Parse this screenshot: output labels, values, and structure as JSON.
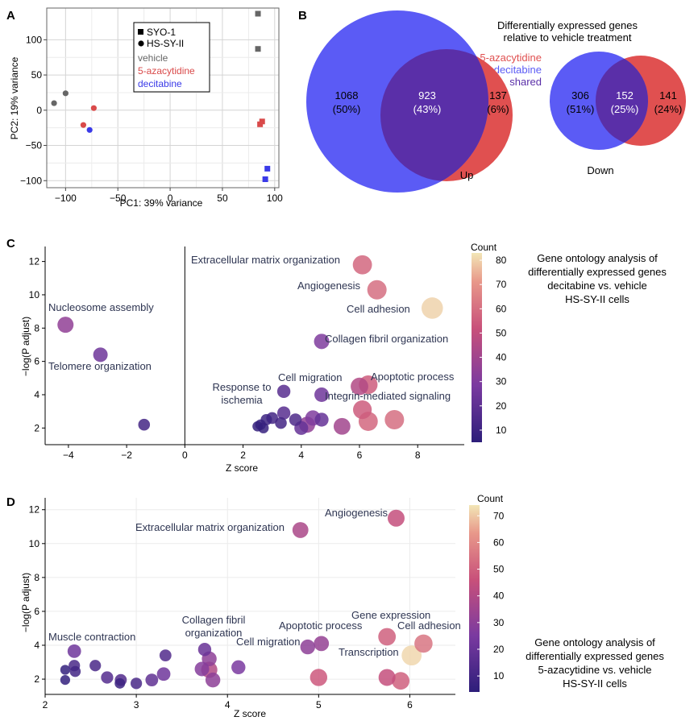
{
  "chart_data": [
    {
      "id": "A",
      "type": "scatter",
      "panel_letter": "A",
      "xlabel": "PC1: 39% variance",
      "ylabel": "PC2: 19% variance",
      "xlim": [
        -118,
        104
      ],
      "ylim": [
        -110,
        145
      ],
      "xticks": [
        -100,
        -50,
        0,
        50,
        100
      ],
      "yticks": [
        -100,
        -50,
        0,
        50,
        100
      ],
      "xticklabels": [
        "−100",
        "−50",
        "0",
        "50",
        "100"
      ],
      "yticklabels": [
        "−100",
        "−50",
        "0",
        "50",
        "100"
      ],
      "legend": {
        "shapes": [
          {
            "shape": "square",
            "label": "SYO-1"
          },
          {
            "shape": "circle",
            "label": "HS-SY-II"
          }
        ],
        "colors": [
          {
            "label": "vehicle",
            "color": "#666666"
          },
          {
            "label": "5-azacytidine",
            "color": "#d94a4a"
          },
          {
            "label": "decitabine",
            "color": "#3a3ae8"
          }
        ]
      },
      "points": [
        {
          "x": 84,
          "y": 137,
          "shape": "square",
          "group": "vehicle"
        },
        {
          "x": 84,
          "y": 87,
          "shape": "square",
          "group": "vehicle"
        },
        {
          "x": -111,
          "y": 10,
          "shape": "circle",
          "group": "vehicle"
        },
        {
          "x": -100,
          "y": 24,
          "shape": "circle",
          "group": "vehicle"
        },
        {
          "x": -73,
          "y": 3,
          "shape": "circle",
          "group": "5-azacytidine"
        },
        {
          "x": -83,
          "y": -21,
          "shape": "circle",
          "group": "5-azacytidine"
        },
        {
          "x": 86,
          "y": -20,
          "shape": "square",
          "group": "5-azacytidine"
        },
        {
          "x": 88,
          "y": -16,
          "shape": "square",
          "group": "5-azacytidine"
        },
        {
          "x": -77,
          "y": -28,
          "shape": "circle",
          "group": "decitabine"
        },
        {
          "x": 93,
          "y": -83,
          "shape": "square",
          "group": "decitabine"
        },
        {
          "x": 91,
          "y": -98,
          "shape": "square",
          "group": "decitabine"
        }
      ]
    },
    {
      "id": "B",
      "type": "venn",
      "panel_letter": "B",
      "title_line1": "Differentially expressed genes",
      "title_line2": "relative to vehicle treatment",
      "legend": [
        {
          "label": "5-azacytidine",
          "color": "#e05050"
        },
        {
          "label": "decitabine",
          "color": "#5b5bf5"
        },
        {
          "label": "shared",
          "color": "#5a2fa8"
        }
      ],
      "up": {
        "label": "Up",
        "decitabine_only": {
          "count": "1068",
          "pct": "(50%)"
        },
        "shared": {
          "count": "923",
          "pct": "(43%)"
        },
        "azacytidine_only": {
          "count": "137",
          "pct": "(6%)"
        }
      },
      "down": {
        "label": "Down",
        "decitabine_only": {
          "count": "306",
          "pct": "(51%)"
        },
        "shared": {
          "count": "152",
          "pct": "(25%)"
        },
        "azacytidine_only": {
          "count": "141",
          "pct": "(24%)"
        }
      }
    },
    {
      "id": "C",
      "type": "scatter",
      "panel_letter": "C",
      "xlabel": "Z score",
      "ylabel": "−log(P adjust)",
      "xlim": [
        -4.8,
        9.6
      ],
      "ylim": [
        1.0,
        12.9
      ],
      "xticks": [
        -4,
        -2,
        0,
        2,
        4,
        6,
        8
      ],
      "yticks": [
        2,
        4,
        6,
        8,
        10,
        12
      ],
      "xticklabels": [
        "−4",
        "−2",
        "0",
        "2",
        "4",
        "6",
        "8"
      ],
      "yticklabels": [
        "2",
        "4",
        "6",
        "8",
        "10",
        "12"
      ],
      "colorbar": {
        "title": "Count",
        "min": 5,
        "max": 83,
        "ticks": [
          10,
          20,
          30,
          40,
          50,
          60,
          70,
          80
        ]
      },
      "side_text": [
        "Gene ontology analysis of",
        "differentially expressed genes",
        "decitabine vs. vehicle",
        "HS-SY-II cells"
      ],
      "annotations": [
        {
          "text": "Extracellular matrix organization"
        },
        {
          "text": "Angiogenesis"
        },
        {
          "text": "Cell adhesion"
        },
        {
          "text": "Nucleosome assembly"
        },
        {
          "text": "Collagen fibril organization"
        },
        {
          "text": "Telomere organization"
        },
        {
          "text": "Cell migration"
        },
        {
          "text": "Apoptotic process"
        },
        {
          "text": "Response to"
        },
        {
          "text": "ischemia"
        },
        {
          "text": "Integrin-mediated signaling"
        }
      ],
      "points": [
        {
          "x": 6.1,
          "y": 11.8,
          "count": 58
        },
        {
          "x": 6.6,
          "y": 10.3,
          "count": 60
        },
        {
          "x": 8.5,
          "y": 9.2,
          "count": 80
        },
        {
          "x": -4.1,
          "y": 8.2,
          "count": 35
        },
        {
          "x": 4.7,
          "y": 7.2,
          "count": 30
        },
        {
          "x": -2.9,
          "y": 6.4,
          "count": 25
        },
        {
          "x": 3.4,
          "y": 4.2,
          "count": 18
        },
        {
          "x": 6.0,
          "y": 4.5,
          "count": 45
        },
        {
          "x": 6.3,
          "y": 4.6,
          "count": 55
        },
        {
          "x": 4.7,
          "y": 4.0,
          "count": 25
        },
        {
          "x": 6.1,
          "y": 3.1,
          "count": 55
        },
        {
          "x": 7.2,
          "y": 2.5,
          "count": 60
        },
        {
          "x": 6.3,
          "y": 2.4,
          "count": 58
        },
        {
          "x": 5.4,
          "y": 2.1,
          "count": 40
        },
        {
          "x": 4.4,
          "y": 2.6,
          "count": 30
        },
        {
          "x": 4.2,
          "y": 2.2,
          "count": 35
        },
        {
          "x": 4.7,
          "y": 2.5,
          "count": 22
        },
        {
          "x": 3.4,
          "y": 2.9,
          "count": 18
        },
        {
          "x": 3.8,
          "y": 2.5,
          "count": 15
        },
        {
          "x": 4.0,
          "y": 2.0,
          "count": 22
        },
        {
          "x": 3.3,
          "y": 2.3,
          "count": 12
        },
        {
          "x": 2.8,
          "y": 2.5,
          "count": 10
        },
        {
          "x": 3.0,
          "y": 2.6,
          "count": 12
        },
        {
          "x": 2.6,
          "y": 2.2,
          "count": 8
        },
        {
          "x": 2.5,
          "y": 2.1,
          "count": 7
        },
        {
          "x": 2.7,
          "y": 2.0,
          "count": 8
        },
        {
          "x": -1.4,
          "y": 2.2,
          "count": 12
        }
      ]
    },
    {
      "id": "D",
      "type": "scatter",
      "panel_letter": "D",
      "xlabel": "Z score",
      "ylabel": "−log(P adjust)",
      "xlim": [
        2.0,
        6.5
      ],
      "ylim": [
        1.1,
        12.7
      ],
      "xticks": [
        2,
        3,
        4,
        5,
        6
      ],
      "yticks": [
        2,
        4,
        6,
        8,
        10,
        12
      ],
      "xticklabels": [
        "2",
        "3",
        "4",
        "5",
        "6"
      ],
      "yticklabels": [
        "2",
        "4",
        "6",
        "8",
        "10",
        "12"
      ],
      "colorbar": {
        "title": "Count",
        "min": 4,
        "max": 74,
        "ticks": [
          10,
          20,
          30,
          40,
          50,
          60,
          70
        ]
      },
      "side_text": [
        "Gene ontology analysis of",
        "differentially expressed genes",
        "5-azacytidine vs. vehicle",
        "HS-SY-II cells"
      ],
      "annotations": [
        {
          "text": "Angiogenesis"
        },
        {
          "text": "Extracellular matrix organization"
        },
        {
          "text": "Gene expression"
        },
        {
          "text": "Cell adhesion"
        },
        {
          "text": "Muscle contraction"
        },
        {
          "text": "Collagen fibril"
        },
        {
          "text": "organization"
        },
        {
          "text": "Apoptotic process"
        },
        {
          "text": "Cell migration"
        },
        {
          "text": "Transcription"
        }
      ],
      "points": [
        {
          "x": 5.85,
          "y": 11.5,
          "count": 45
        },
        {
          "x": 4.8,
          "y": 10.8,
          "count": 38
        },
        {
          "x": 5.75,
          "y": 4.5,
          "count": 50
        },
        {
          "x": 6.15,
          "y": 4.1,
          "count": 55
        },
        {
          "x": 6.02,
          "y": 3.4,
          "count": 72
        },
        {
          "x": 5.03,
          "y": 4.1,
          "count": 32
        },
        {
          "x": 4.88,
          "y": 3.9,
          "count": 30
        },
        {
          "x": 5.0,
          "y": 2.1,
          "count": 48
        },
        {
          "x": 5.75,
          "y": 2.1,
          "count": 45
        },
        {
          "x": 5.9,
          "y": 1.9,
          "count": 50
        },
        {
          "x": 2.32,
          "y": 3.65,
          "count": 22
        },
        {
          "x": 2.32,
          "y": 2.8,
          "count": 12
        },
        {
          "x": 2.33,
          "y": 2.45,
          "count": 10
        },
        {
          "x": 2.22,
          "y": 2.55,
          "count": 6
        },
        {
          "x": 2.22,
          "y": 1.95,
          "count": 6
        },
        {
          "x": 2.55,
          "y": 2.8,
          "count": 12
        },
        {
          "x": 2.68,
          "y": 2.1,
          "count": 15
        },
        {
          "x": 2.82,
          "y": 1.75,
          "count": 8
        },
        {
          "x": 2.83,
          "y": 1.95,
          "count": 14
        },
        {
          "x": 3.0,
          "y": 1.75,
          "count": 12
        },
        {
          "x": 3.17,
          "y": 1.95,
          "count": 18
        },
        {
          "x": 3.3,
          "y": 2.3,
          "count": 22
        },
        {
          "x": 3.32,
          "y": 3.4,
          "count": 14
        },
        {
          "x": 3.75,
          "y": 3.75,
          "count": 20
        },
        {
          "x": 3.8,
          "y": 3.2,
          "count": 30
        },
        {
          "x": 3.72,
          "y": 2.6,
          "count": 28
        },
        {
          "x": 3.8,
          "y": 2.55,
          "count": 40
        },
        {
          "x": 3.84,
          "y": 1.95,
          "count": 30
        },
        {
          "x": 4.12,
          "y": 2.7,
          "count": 25
        }
      ]
    }
  ]
}
